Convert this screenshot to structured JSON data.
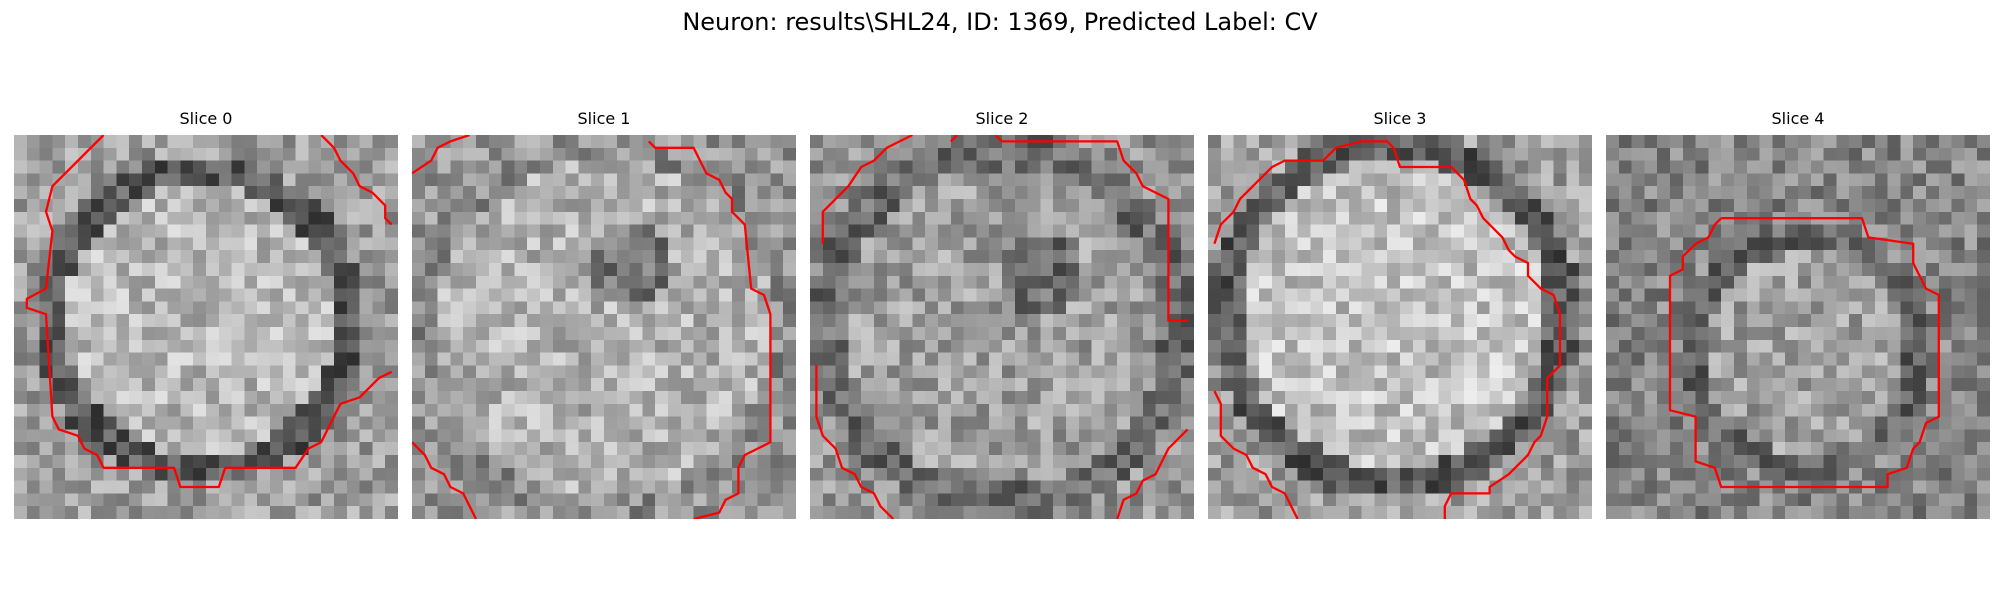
{
  "figure": {
    "title": "Neuron: results\\SHL24, ID: 1369, Predicted Label: CV"
  },
  "colors": {
    "contour": "#ff0000",
    "background": "#ffffff"
  },
  "image": {
    "grid_cells": 30,
    "colormap": "gray"
  },
  "slices": [
    {
      "title": "Slice 0"
    },
    {
      "title": "Slice 1"
    },
    {
      "title": "Slice 2"
    },
    {
      "title": "Slice 3"
    },
    {
      "title": "Slice 4"
    }
  ]
}
